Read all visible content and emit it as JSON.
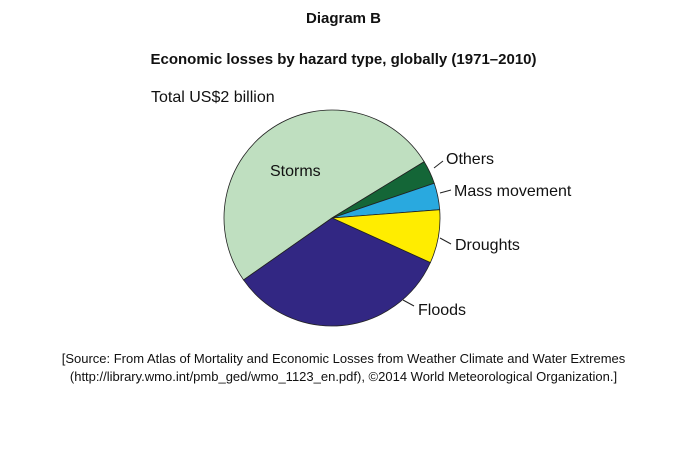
{
  "figure_label": "Diagram B",
  "chart_data": {
    "type": "pie",
    "title": "Economic losses by hazard type, globally (1971–2010)",
    "total_label": "Total US$2 billion",
    "slices": [
      {
        "label": "Storms",
        "percent": 51,
        "color": "#bfdfc0"
      },
      {
        "label": "Others",
        "percent": 3.5,
        "color": "#146637"
      },
      {
        "label": "Mass movement",
        "percent": 4,
        "color": "#29a9df"
      },
      {
        "label": "Droughts",
        "percent": 8,
        "color": "#ffed00"
      },
      {
        "label": "Floods",
        "percent": 33.5,
        "color": "#322783"
      }
    ]
  },
  "source": {
    "line1": "[Source: From Atlas of Mortality and Economic Losses from Weather Climate and Water Extremes",
    "line2": "(http://library.wmo.int/pmb_ged/wmo_1123_en.pdf), ©2014 World Meteorological Organization.]"
  }
}
